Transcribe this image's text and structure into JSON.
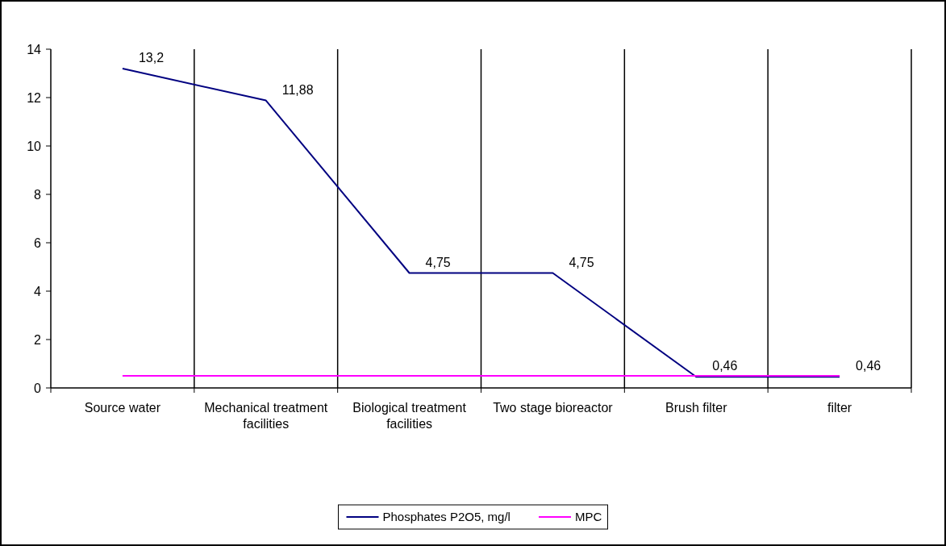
{
  "chart_data": {
    "type": "line",
    "categories": [
      "Source water",
      "Mechanical treatment facilities",
      "Biological treatment facilities",
      "Two stage bioreactor",
      "Brush filter",
      "filter"
    ],
    "series": [
      {
        "name": "Phosphates P2O5, mg/l",
        "color": "#000080",
        "values": [
          13.2,
          11.88,
          4.75,
          4.75,
          0.46,
          0.46
        ],
        "value_labels": [
          "13,2",
          "11,88",
          "4,75",
          "4,75",
          "0,46",
          "0,46"
        ]
      },
      {
        "name": "MPC",
        "color": "#ff00ff",
        "values": [
          0.5,
          0.5,
          0.5,
          0.5,
          0.5,
          0.5
        ]
      }
    ],
    "ylim": [
      0,
      14
    ],
    "yticks": [
      0,
      2,
      4,
      6,
      8,
      10,
      12,
      14
    ],
    "grid": "x",
    "legend": "bottom",
    "marker": "none",
    "line_style": "solid"
  }
}
